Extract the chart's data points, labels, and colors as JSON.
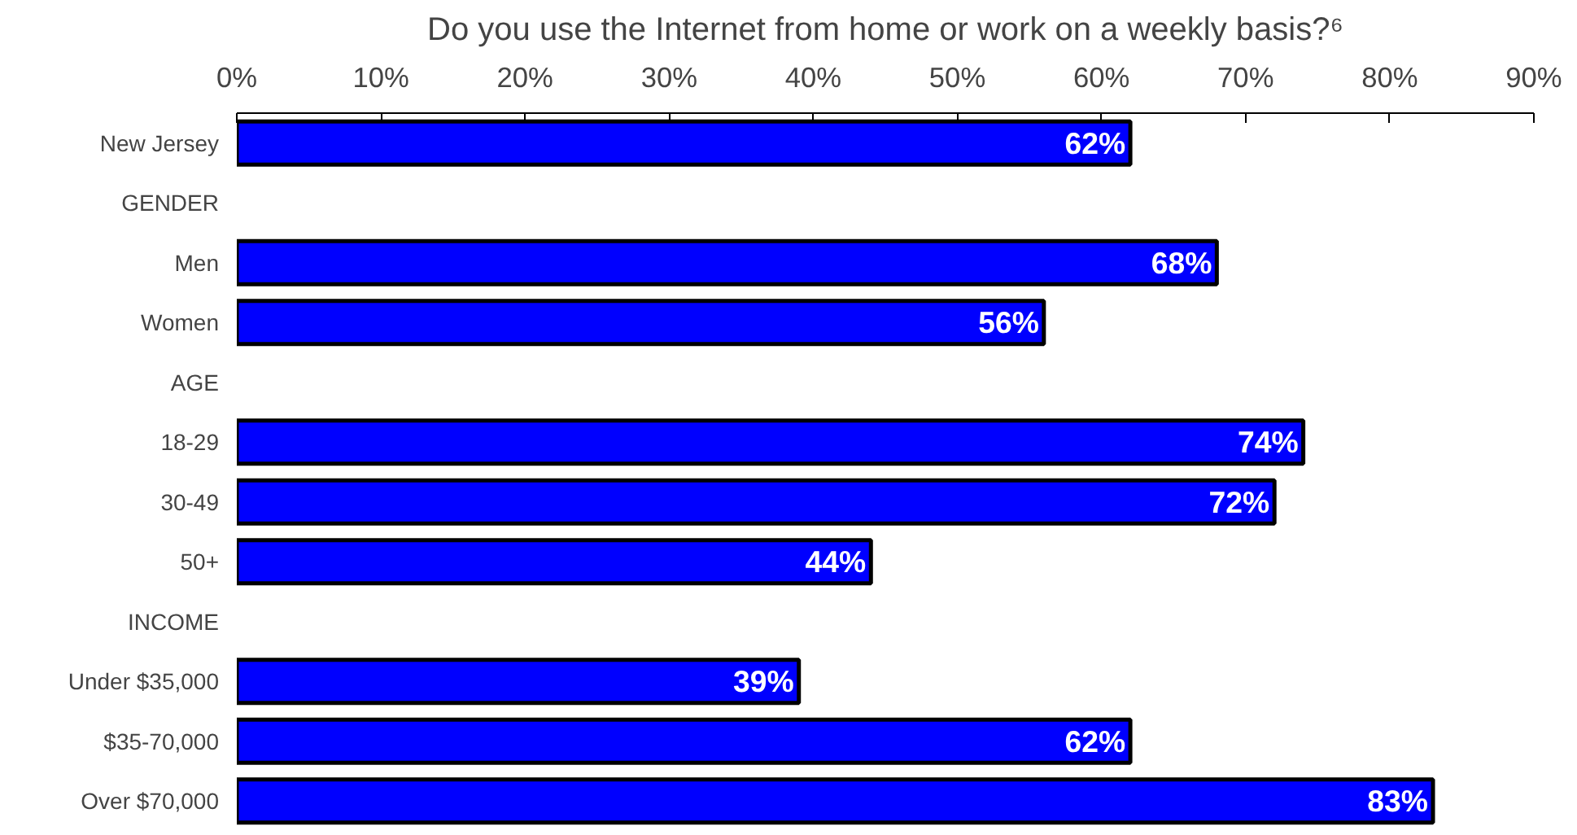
{
  "chart_data": {
    "type": "bar",
    "orientation": "horizontal",
    "title": "Do you use the Internet from home or work on a weekly basis?⁶",
    "categories": [
      "New Jersey",
      "GENDER",
      "Men",
      "Women",
      "AGE",
      "18-29",
      "30-49",
      "50+",
      "INCOME",
      "Under $35,000",
      "$35-70,000",
      "Over $70,000"
    ],
    "values": [
      62,
      null,
      68,
      56,
      null,
      74,
      72,
      44,
      null,
      39,
      62,
      83
    ],
    "value_labels": [
      "62%",
      null,
      "68%",
      "56%",
      null,
      "74%",
      "72%",
      "44%",
      null,
      "39%",
      "62%",
      "83%"
    ],
    "color": "#0000ff",
    "xlim": [
      0,
      90
    ],
    "xticks": [
      {
        "value": 0,
        "label": "0%"
      },
      {
        "value": 10,
        "label": "10%"
      },
      {
        "value": 20,
        "label": "20%"
      },
      {
        "value": 30,
        "label": "30%"
      },
      {
        "value": 40,
        "label": "40%"
      },
      {
        "value": 50,
        "label": "50%"
      },
      {
        "value": 60,
        "label": "60%"
      },
      {
        "value": 70,
        "label": "70%"
      },
      {
        "value": 80,
        "label": "80%"
      },
      {
        "value": 90,
        "label": "90%"
      }
    ],
    "grid": false
  }
}
